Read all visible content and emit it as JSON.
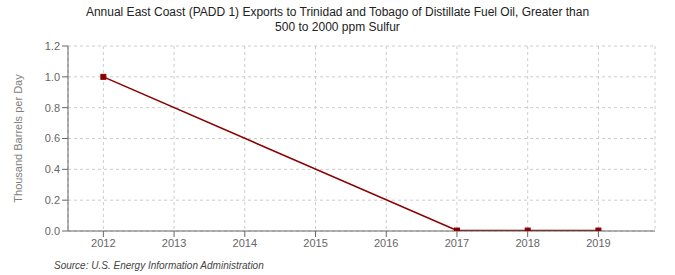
{
  "chart_data": {
    "type": "line",
    "title": "Annual East Coast (PADD 1) Exports to Trinidad and Tobago of Distillate Fuel Oil, Greater than\n500 to 2000 ppm Sulfur",
    "y_label": "Thousand Barrels per Day",
    "annotations": [
      "Source: U.S. Energy Information Administration"
    ],
    "x": [
      2012,
      2017,
      2018,
      2019
    ],
    "values": [
      1.0,
      0.003,
      0.003,
      0.003
    ],
    "color": "#8b0000",
    "marker": "square",
    "xlim": [
      2011.5,
      2019.8
    ],
    "xticks": [
      2012,
      2013,
      2014,
      2015,
      2016,
      2017,
      2018,
      2019
    ],
    "ylim": [
      0.0,
      1.2
    ],
    "yticks": [
      {
        "value": 0.0,
        "label": "0.0"
      },
      0.2,
      0.4,
      0.6,
      0.8,
      {
        "value": 1.0,
        "label": "1.0"
      },
      1.2
    ],
    "grid": true
  }
}
